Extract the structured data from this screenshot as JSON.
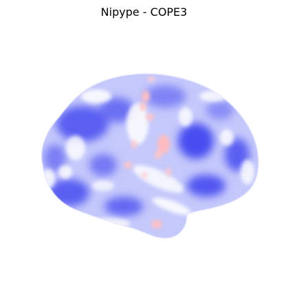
{
  "figure": {
    "title": "Nipype - COPE3"
  },
  "surface": {
    "icon": "brain-surface-icon",
    "colormap": {
      "negative": "#4a4ef0",
      "mid": "#ffffff",
      "positive": "#ffc8c8"
    }
  }
}
